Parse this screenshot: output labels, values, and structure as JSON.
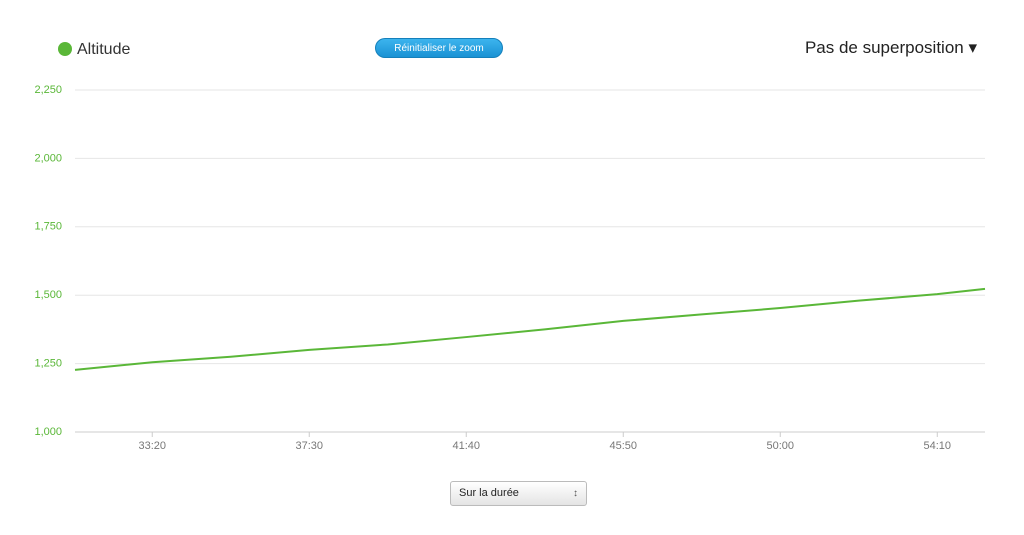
{
  "chart_data": {
    "type": "line",
    "x": [
      1877,
      2000,
      2125,
      2250,
      2375,
      2500,
      2625,
      2750,
      2875,
      3000,
      3125,
      3250,
      3326
    ],
    "series": [
      {
        "name": "Altitude",
        "color": "#5ab738",
        "values": [
          1227,
          1255,
          1275,
          1300,
          1320,
          1347,
          1375,
          1406,
          1430,
          1453,
          1480,
          1504,
          1523
        ]
      }
    ],
    "xlim": [
      1877,
      3326
    ],
    "xticks": [
      {
        "value": 2000,
        "label": "33:20"
      },
      {
        "value": 2250,
        "label": "37:30"
      },
      {
        "value": 2500,
        "label": "41:40"
      },
      {
        "value": 2750,
        "label": "45:50"
      },
      {
        "value": 3000,
        "label": "50:00"
      },
      {
        "value": 3250,
        "label": "54:10"
      }
    ],
    "ylim": [
      1000,
      2250
    ],
    "yticks": [
      {
        "value": 1000,
        "label": "1,000"
      },
      {
        "value": 1250,
        "label": "1,250"
      },
      {
        "value": 1500,
        "label": "1,500"
      },
      {
        "value": 1750,
        "label": "1,750"
      },
      {
        "value": 2000,
        "label": "2,000"
      },
      {
        "value": 2250,
        "label": "2,250"
      }
    ],
    "grid": true
  },
  "ui": {
    "reset_zoom": "Réinitialiser le zoom",
    "overlay": "Pas de superposition",
    "range_select": "Sur la durée"
  }
}
